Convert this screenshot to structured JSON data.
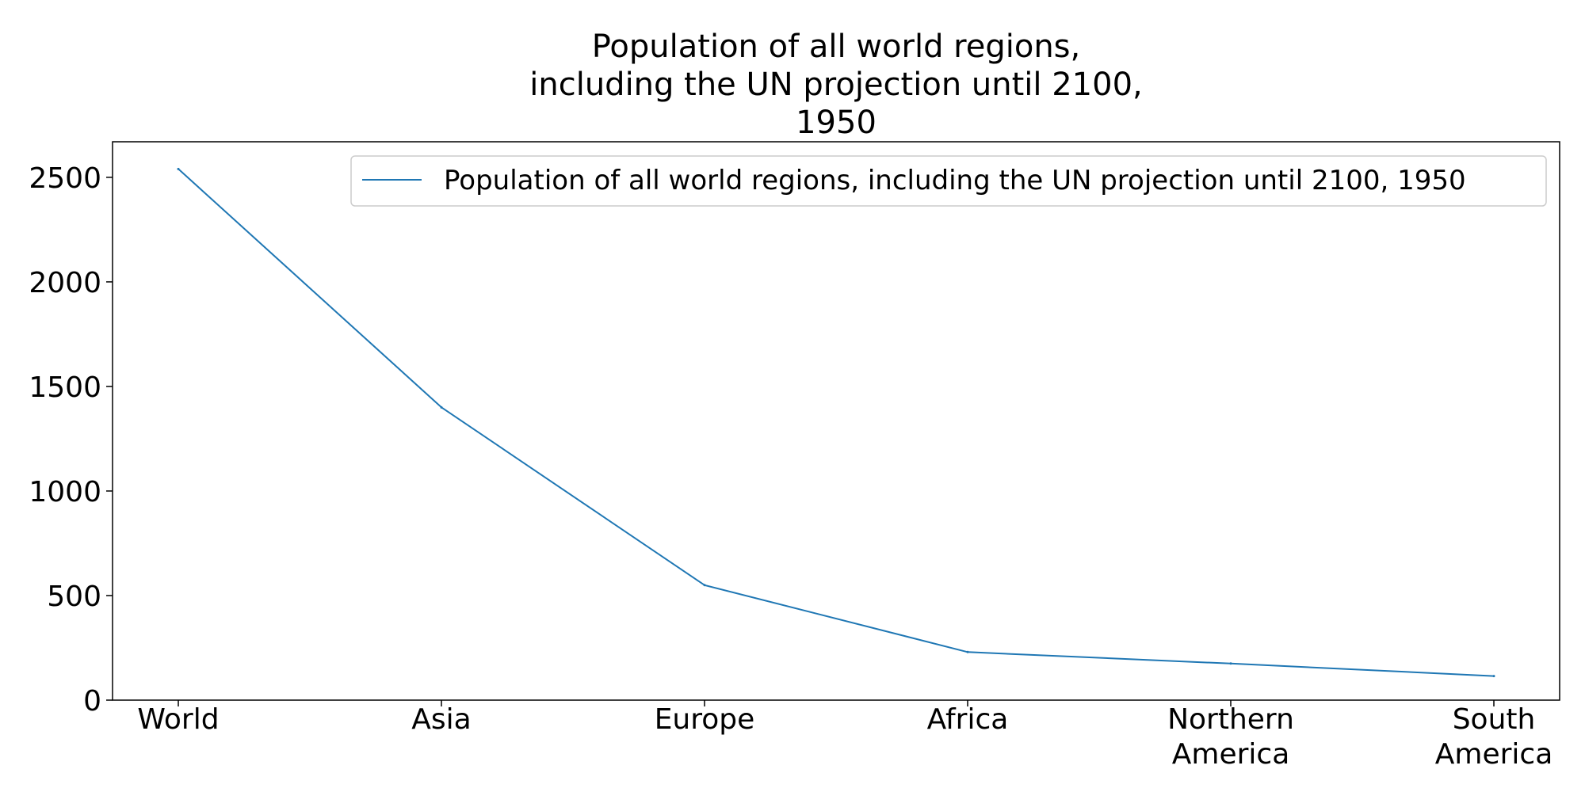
{
  "chart_data": {
    "type": "line",
    "title": "Population of all world regions,\nincluding the UN projection until 2100,\n1950",
    "title_lines": [
      "Population of all world regions,",
      "including the UN projection until 2100,",
      "1950"
    ],
    "xlabel": "",
    "ylabel": "",
    "categories": [
      "World",
      "Asia",
      "Europe",
      "Africa",
      "Northern\nAmerica",
      "South\nAmerica"
    ],
    "category_lines": [
      [
        "World"
      ],
      [
        "Asia"
      ],
      [
        "Europe"
      ],
      [
        "Africa"
      ],
      [
        "Northern",
        "America"
      ],
      [
        "South",
        "America"
      ]
    ],
    "series": [
      {
        "name": "Population of all world regions, including the UN projection until 2100, 1950",
        "values": [
          2540,
          1400,
          550,
          230,
          175,
          115
        ],
        "color": "#1f77b4"
      }
    ],
    "ylim": [
      0,
      2670
    ],
    "yticks": [
      0,
      500,
      1000,
      1500,
      2000,
      2500
    ],
    "ytick_labels": [
      "0",
      "500",
      "1000",
      "1500",
      "2000",
      "2500"
    ],
    "grid": false,
    "legend_position": "top-right"
  }
}
